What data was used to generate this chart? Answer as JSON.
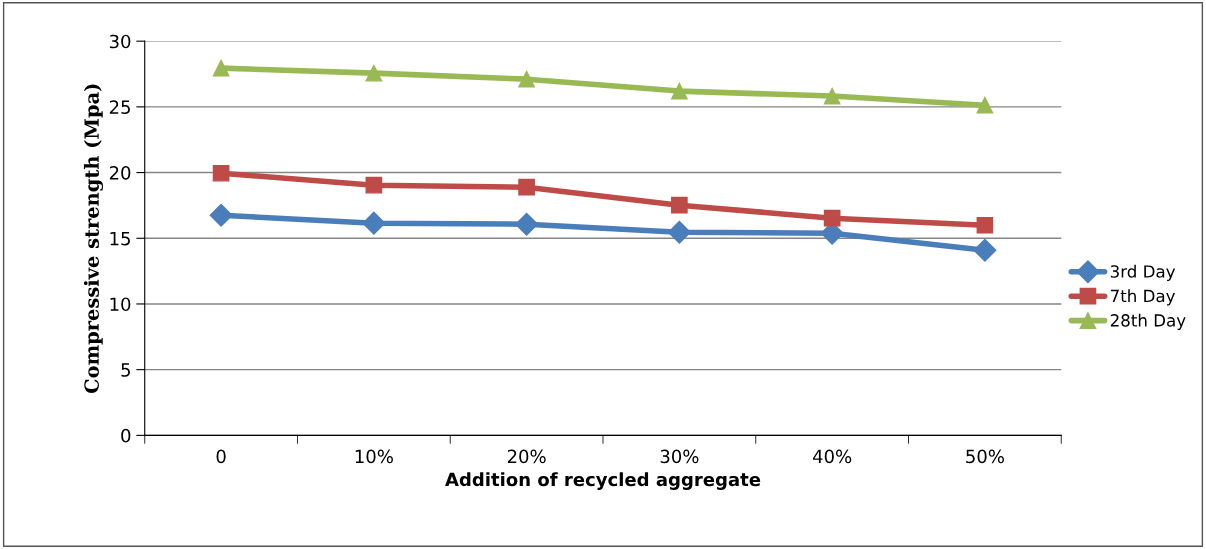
{
  "chart_data": {
    "type": "line",
    "xlabel": "Addition of recycled aggregate",
    "ylabel": "Compressive strength (Mpa)",
    "categories": [
      "0",
      "10%",
      "20%",
      "30%",
      "40%",
      "50%"
    ],
    "series": [
      {
        "name": "3rd Day",
        "color": "#4a7ebb",
        "marker": "diamond",
        "values": [
          16.75,
          16.15,
          16.07,
          15.46,
          15.38,
          14.09
        ]
      },
      {
        "name": "7th Day",
        "color": "#be4b48",
        "marker": "square",
        "values": [
          19.95,
          19.04,
          18.89,
          17.52,
          16.53,
          15.99
        ]
      },
      {
        "name": "28th Day",
        "color": "#98b954",
        "marker": "triangle",
        "values": [
          27.95,
          27.57,
          27.11,
          26.2,
          25.82,
          25.13
        ]
      }
    ],
    "ylim": [
      0,
      30
    ],
    "yticks": [
      0,
      5,
      10,
      15,
      20,
      25,
      30
    ],
    "grid": "y",
    "legend": "right",
    "line_style": "solid"
  }
}
